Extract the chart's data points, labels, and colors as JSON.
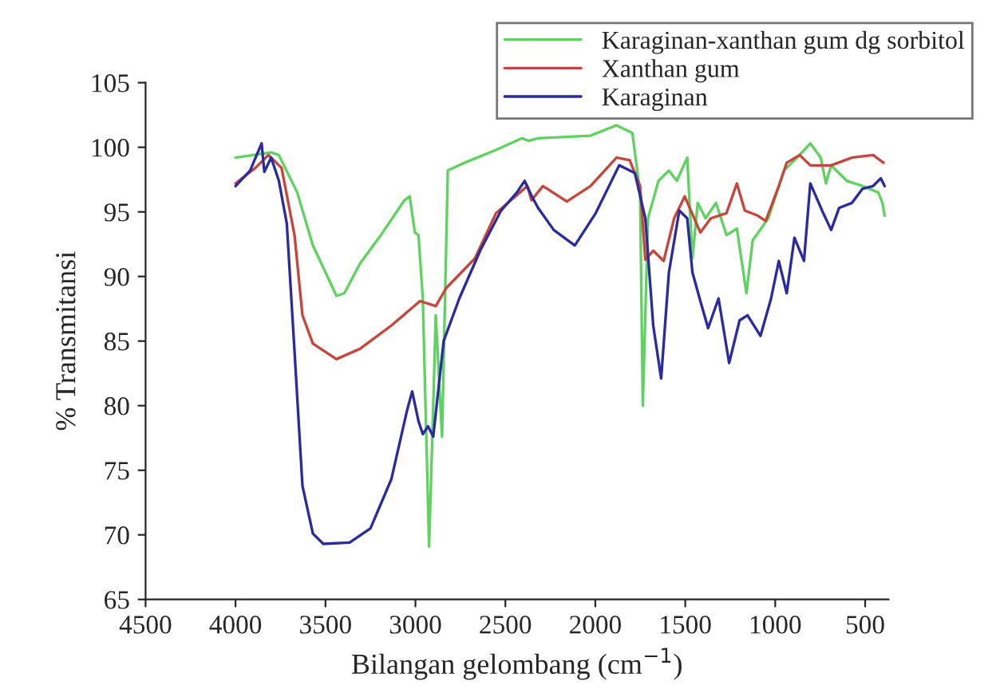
{
  "chart_data": {
    "type": "line",
    "xlabel": "Bilangan gelombang (cm$^{−1}$)",
    "ylabel": "% Transmitansi",
    "xlim": [
      4500,
      370
    ],
    "xticks": [
      4500,
      4000,
      3500,
      3000,
      2500,
      2000,
      1500,
      1000,
      500
    ],
    "ylim": [
      65,
      105
    ],
    "yticks": [
      65,
      70,
      75,
      80,
      85,
      90,
      95,
      100,
      105
    ],
    "grid": false,
    "legend": "top right",
    "line_style": "solid",
    "marker": "none",
    "series": [
      {
        "name": "Karaginan-xanthan gum dg sorbitol",
        "color": "#5fd35f",
        "x": [
          4000,
          3802,
          3759,
          3657,
          3570,
          3439,
          3395,
          3308,
          3192,
          3061,
          3032,
          3003,
          2983,
          2959,
          2924,
          2901,
          2887,
          2852,
          2820,
          2727,
          2552,
          2407,
          2372,
          2318,
          2027,
          1882,
          1794,
          1751,
          1736,
          1707,
          1649,
          1591,
          1547,
          1489,
          1460,
          1431,
          1387,
          1329,
          1271,
          1213,
          1160,
          1125,
          1038,
          951,
          878,
          805,
          747,
          718,
          689,
          602,
          514,
          427,
          404,
          392
        ],
        "values": [
          99.2,
          99.6,
          99.4,
          96.5,
          92.4,
          88.5,
          88.7,
          91,
          93.2,
          95.9,
          96.2,
          93.4,
          93.2,
          88.3,
          69.1,
          80,
          87,
          77.6,
          98.2,
          98.8,
          99.8,
          100.7,
          100.5,
          100.7,
          100.9,
          101.7,
          101.1,
          96.5,
          80,
          94.5,
          97.4,
          98.2,
          97.4,
          99.2,
          91.4,
          95.7,
          94.5,
          95.7,
          93.2,
          93.7,
          88.7,
          92.8,
          94.5,
          98.2,
          99.2,
          100.3,
          99.2,
          97.2,
          98.6,
          97.4,
          97,
          96.5,
          95.7,
          94.7
        ]
      },
      {
        "name": "Xanthan gum",
        "color": "#c8453c",
        "x": [
          4000,
          3890,
          3817,
          3744,
          3672,
          3628,
          3570,
          3439,
          3308,
          3134,
          2974,
          2887,
          2829,
          2669,
          2552,
          2436,
          2378,
          2355,
          2291,
          2158,
          2027,
          1882,
          1809,
          1751,
          1722,
          1678,
          1620,
          1562,
          1503,
          1416,
          1358,
          1271,
          1213,
          1169,
          1096,
          1053,
          980,
          936,
          864,
          805,
          689,
          573,
          456,
          398
        ],
        "values": [
          97.2,
          98.4,
          99.4,
          98.4,
          93.2,
          87,
          84.8,
          83.6,
          84.4,
          86.2,
          88.1,
          87.7,
          89.1,
          91.4,
          94.9,
          96.3,
          97,
          95.9,
          97,
          95.8,
          97,
          99.2,
          99,
          97,
          91.3,
          92,
          91.2,
          94.5,
          96.2,
          93.4,
          94.5,
          94.9,
          97.2,
          95.1,
          94.7,
          94.3,
          97,
          98.8,
          99.4,
          98.6,
          98.6,
          99.2,
          99.4,
          98.8
        ]
      },
      {
        "name": "Karaginan",
        "color": "#2b2ba0",
        "x": [
          4000,
          3919,
          3855,
          3840,
          3802,
          3759,
          3715,
          3672,
          3628,
          3570,
          3512,
          3366,
          3250,
          3134,
          3047,
          3018,
          2983,
          2959,
          2930,
          2901,
          2843,
          2756,
          2640,
          2524,
          2436,
          2393,
          2349,
          2318,
          2231,
          2114,
          1998,
          1867,
          1780,
          1722,
          1678,
          1634,
          1591,
          1533,
          1489,
          1460,
          1416,
          1373,
          1315,
          1256,
          1198,
          1154,
          1082,
          1023,
          980,
          936,
          893,
          840,
          805,
          733,
          689,
          645,
          573,
          514,
          456,
          413,
          392
        ],
        "values": [
          97,
          98.2,
          100.3,
          98.1,
          99.2,
          97.4,
          94.1,
          84.2,
          73.8,
          70.1,
          69.3,
          69.4,
          70.5,
          74.3,
          79.6,
          81.1,
          78.8,
          77.8,
          78.4,
          77.6,
          85,
          88.3,
          92,
          95.1,
          96.5,
          97.4,
          96.1,
          95.3,
          93.6,
          92.4,
          94.9,
          98.6,
          98,
          94.5,
          86.2,
          82.1,
          90.3,
          95.1,
          94.5,
          90.3,
          88.1,
          86,
          88.3,
          83.3,
          86.6,
          87,
          85.4,
          88.3,
          91.2,
          88.7,
          93,
          91.2,
          97.2,
          94.9,
          93.6,
          95.3,
          95.7,
          96.8,
          97,
          97.6,
          97
        ]
      }
    ]
  }
}
